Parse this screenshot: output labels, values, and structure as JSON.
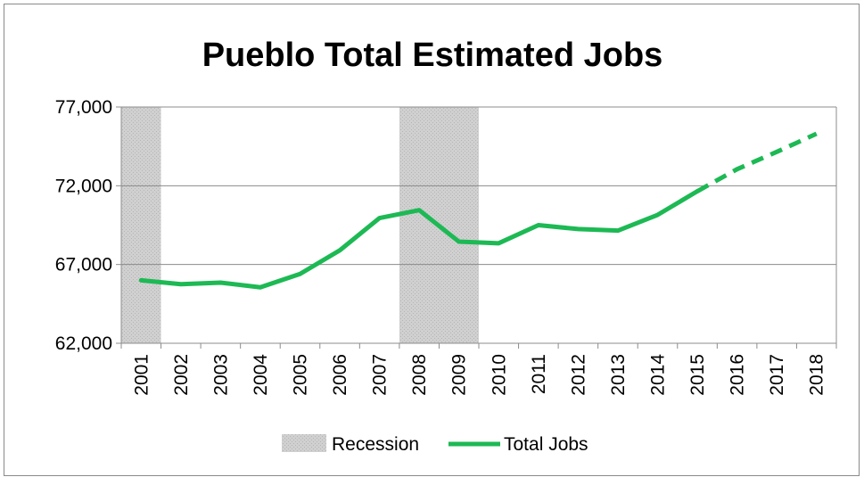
{
  "chart_data": {
    "type": "line",
    "title": "Pueblo Total Estimated Jobs",
    "categories": [
      "2001",
      "2002",
      "2003",
      "2004",
      "2005",
      "2006",
      "2007",
      "2008",
      "2009",
      "2010",
      "2011",
      "2012",
      "2013",
      "2014",
      "2015",
      "2016",
      "2017",
      "2018"
    ],
    "series": [
      {
        "name": "Total Jobs",
        "color": "#1db954",
        "values": [
          66000,
          65750,
          65850,
          65550,
          66400,
          67900,
          69950,
          70450,
          68450,
          68350,
          69500,
          69250,
          69150,
          70150,
          71650,
          73050,
          74150,
          75300
        ],
        "projected_from": "2015"
      }
    ],
    "recession_periods": [
      [
        "2001",
        "2001"
      ],
      [
        "2008",
        "2009"
      ]
    ],
    "recession_label": "Recession",
    "recession_color": "#d0d0d0",
    "ylim": [
      62000,
      77000
    ],
    "yticks": [
      62000,
      67000,
      72000,
      77000
    ],
    "ytick_labels": [
      "62,000",
      "67,000",
      "72,000",
      "77,000"
    ],
    "xlabel": "",
    "ylabel": "",
    "grid": true,
    "legend_position": "bottom"
  }
}
